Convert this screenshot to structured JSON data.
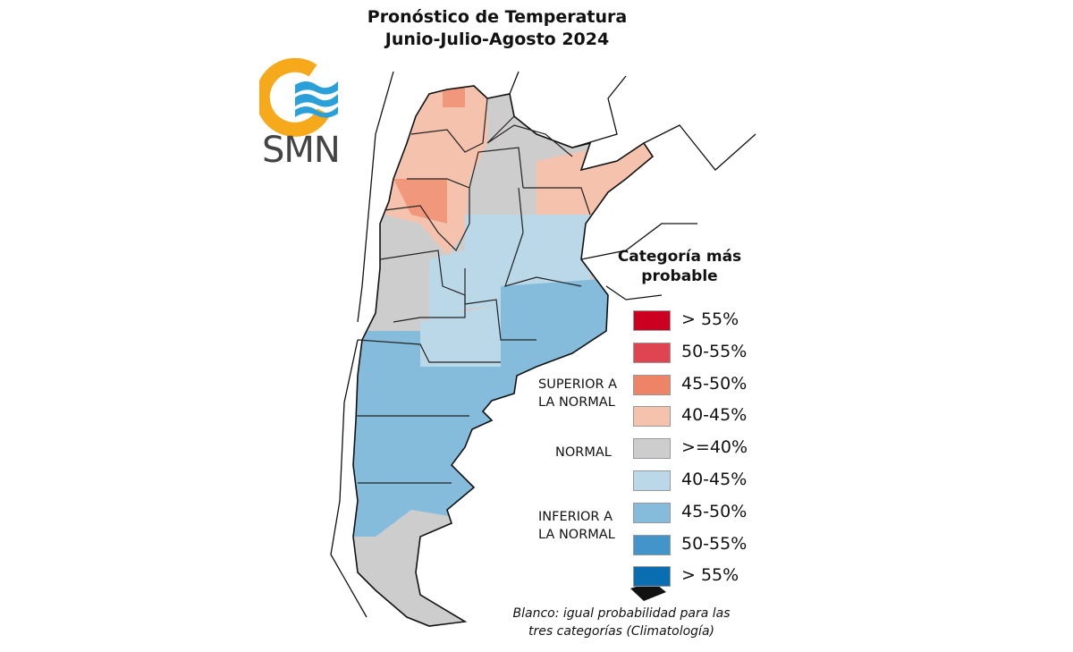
{
  "title": {
    "line1": "Pronóstico de Temperatura",
    "line2": "Junio-Julio-Agosto 2024"
  },
  "logo": {
    "text": "SMN",
    "colors": {
      "ring": "#F5A91B",
      "waves": "#2A9FD8"
    }
  },
  "legend": {
    "title": "Categoría más probable",
    "groups": {
      "superior": "SUPERIOR A LA NORMAL",
      "normal": "NORMAL",
      "inferior": "INFERIOR A LA NORMAL"
    },
    "items": [
      {
        "label": "> 55%",
        "color": "#CC0020",
        "category": "superior"
      },
      {
        "label": "50-55%",
        "color": "#DE4550",
        "category": "superior"
      },
      {
        "label": "45-50%",
        "color": "#EE8466",
        "category": "superior"
      },
      {
        "label": "40-45%",
        "color": "#F5C2AE",
        "category": "superior"
      },
      {
        "label": ">=40%",
        "color": "#CDCDCD",
        "category": "normal"
      },
      {
        "label": "40-45%",
        "color": "#BBD8E8",
        "category": "inferior"
      },
      {
        "label": "45-50%",
        "color": "#85BCDC",
        "category": "inferior"
      },
      {
        "label": "50-55%",
        "color": "#4395C9",
        "category": "inferior"
      },
      {
        "label": "> 55%",
        "color": "#0A6DB0",
        "category": "inferior"
      }
    ],
    "note": "Blanco: igual probabilidad para las tres categorías (Climatología)"
  }
}
